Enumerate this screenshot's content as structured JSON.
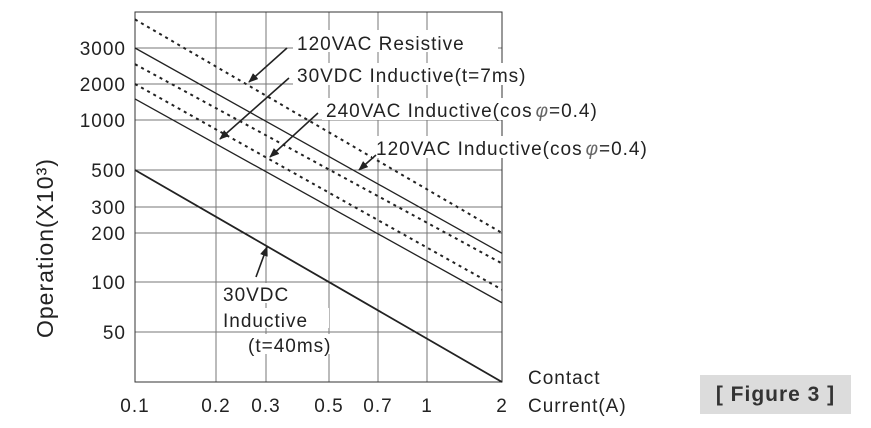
{
  "chart_data": {
    "type": "line",
    "title": "",
    "xscale": "log",
    "yscale": "log",
    "xlabel": [
      "Contact",
      "Current(A)"
    ],
    "ylabel": "Operation(X10³)",
    "xlim": [
      0.1,
      2
    ],
    "ylim": [
      25,
      5000
    ],
    "grid": true,
    "x_ticks": [
      {
        "value": 0.1,
        "label": "0.1"
      },
      {
        "value": 0.2,
        "label": "0.2"
      },
      {
        "value": 0.3,
        "label": "0.3"
      },
      {
        "value": 0.5,
        "label": "0.5"
      },
      {
        "value": 0.7,
        "label": "0.7"
      },
      {
        "value": 1,
        "label": "1"
      },
      {
        "value": 2,
        "label": "2"
      }
    ],
    "y_ticks": [
      {
        "value": 3000,
        "label": "3000"
      },
      {
        "value": 2000,
        "label": "2000"
      },
      {
        "value": 1000,
        "label": "1000"
      },
      {
        "value": 500,
        "label": "500"
      },
      {
        "value": 300,
        "label": "300"
      },
      {
        "value": 200,
        "label": "200"
      },
      {
        "value": 100,
        "label": "100"
      },
      {
        "value": 50,
        "label": "50"
      }
    ],
    "series": [
      {
        "name": "120VAC Resistive",
        "style": "dotted",
        "x": [
          0.1,
          2
        ],
        "y": [
          4500,
          200
        ]
      },
      {
        "name": "120VAC Inductive(cos φ=0.4)",
        "style": "solid",
        "x": [
          0.1,
          2
        ],
        "y": [
          3000,
          150
        ]
      },
      {
        "name": "120VAC Inductive(cos φ=0.4) dotted",
        "style": "dotted",
        "x": [
          0.1,
          2
        ],
        "y": [
          2500,
          130
        ]
      },
      {
        "name": "240VAC Inductive(cos φ=0.4)",
        "style": "dotted",
        "x": [
          0.1,
          2
        ],
        "y": [
          2000,
          90
        ]
      },
      {
        "name": "30VDC Inductive(t=7ms)",
        "style": "solid",
        "x": [
          0.1,
          2
        ],
        "y": [
          1500,
          75
        ]
      },
      {
        "name": "30VDC Inductive(t=40ms)",
        "style": "solid-thick",
        "x": [
          0.1,
          2
        ],
        "y": [
          500,
          25
        ]
      }
    ],
    "annotations": {
      "resistive": "120VAC Resistive",
      "dc7": "30VDC Inductive(t=7ms)",
      "ac240_a": "240VAC Inductive(cos",
      "ac240_b": "=0.4)",
      "ac120_a": "120VAC Inductive(cos",
      "ac120_b": "=0.4)",
      "phi": "φ",
      "dc40_1": "30VDC",
      "dc40_2": "Inductive",
      "dc40_3": "(t=40ms)"
    }
  },
  "figure_label": "[ Figure 3 ]"
}
